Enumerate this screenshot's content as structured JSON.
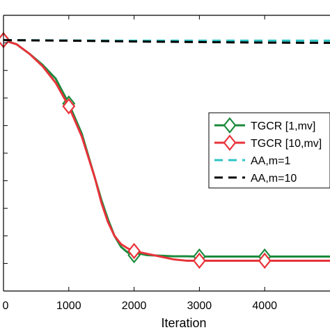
{
  "chart_data": {
    "type": "line",
    "xlabel": "Iteration",
    "xlim": [
      0,
      5000
    ],
    "ylim": [
      0,
      1
    ],
    "x_ticks": [
      0,
      1000,
      2000,
      3000,
      4000
    ],
    "x_tick_labels": [
      "0",
      "1000",
      "2000",
      "3000",
      "4000"
    ],
    "y_tick_positions": [
      0,
      0.1,
      0.2,
      0.3,
      0.4,
      0.5,
      0.6,
      0.7,
      0.8,
      0.9,
      1.0
    ],
    "grid": false,
    "legend_position": "right",
    "series": [
      {
        "name": "TGCR [1,mv]",
        "color": "#1a8a3c",
        "style": "solid",
        "marker": "diamond",
        "x": [
          0,
          200,
          400,
          600,
          800,
          1000,
          1200,
          1400,
          1500,
          1600,
          1700,
          1800,
          1900,
          2000,
          2100,
          2200,
          2400,
          2600,
          2800,
          3000,
          3500,
          4000,
          4500,
          5000
        ],
        "y": [
          0.91,
          0.895,
          0.86,
          0.82,
          0.77,
          0.68,
          0.57,
          0.41,
          0.33,
          0.26,
          0.2,
          0.16,
          0.14,
          0.13,
          0.135,
          0.13,
          0.128,
          0.126,
          0.126,
          0.125,
          0.125,
          0.125,
          0.125,
          0.125
        ],
        "marker_x": [
          0,
          1000,
          2000,
          3000,
          4000
        ]
      },
      {
        "name": "TGCR [10,mv]",
        "color": "#e8333a",
        "style": "solid",
        "marker": "diamond",
        "x": [
          0,
          200,
          400,
          600,
          800,
          1000,
          1200,
          1400,
          1500,
          1600,
          1700,
          1800,
          1900,
          2000,
          2100,
          2200,
          2400,
          2600,
          2800,
          3000,
          3500,
          4000,
          4500,
          5000
        ],
        "y": [
          0.91,
          0.895,
          0.86,
          0.815,
          0.755,
          0.67,
          0.56,
          0.41,
          0.32,
          0.25,
          0.2,
          0.17,
          0.155,
          0.145,
          0.14,
          0.135,
          0.125,
          0.115,
          0.11,
          0.11,
          0.11,
          0.11,
          0.11,
          0.11
        ],
        "marker_x": [
          0,
          1000,
          2000,
          3000,
          4000
        ]
      },
      {
        "name": "AA,m=1",
        "color": "#2ec4c4",
        "style": "dashed",
        "marker": "none",
        "x": [
          0,
          1000,
          2000,
          3000,
          4000,
          5000
        ],
        "y": [
          0.91,
          0.909,
          0.908,
          0.908,
          0.908,
          0.908
        ]
      },
      {
        "name": "AA,m=10",
        "color": "#000000",
        "style": "dashed",
        "marker": "none",
        "x": [
          0,
          1000,
          2000,
          3000,
          4000,
          5000
        ],
        "y": [
          0.91,
          0.908,
          0.905,
          0.903,
          0.901,
          0.9
        ]
      }
    ]
  }
}
